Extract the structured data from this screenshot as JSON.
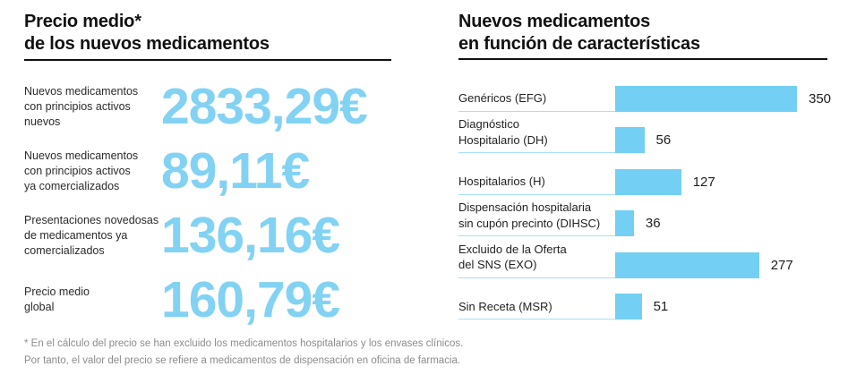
{
  "colors": {
    "accent_blue_numbers": "#82D2F3",
    "accent_blue_bars": "#73CFF3",
    "label_underline_blue": "#A8DFF7",
    "title_black": "#111111",
    "footnote_gray": "#8c8c8c",
    "background": "#ffffff"
  },
  "left": {
    "title": "Precio medio*\nde los nuevos medicamentos",
    "stats": [
      {
        "label": "Nuevos medicamentos\ncon principios activos\nnuevos",
        "value": "2833,29€"
      },
      {
        "label": "Nuevos medicamentos\ncon principios activos\nya comercializados",
        "value": "89,11€"
      },
      {
        "label": "Presentaciones novedosas\nde medicamentos ya\ncomercializados",
        "value": "136,16€"
      },
      {
        "label": "Precio medio\nglobal",
        "value": "160,79€"
      }
    ],
    "footnote": "* En el cálculo del precio se han excluido los medicamentos hospitalarios y los envases clínicos.\nPor tanto, el valor del precio se refiere a medicamentos de dispensación en oficina de farmacia."
  },
  "right": {
    "title": "Nuevos medicamentos\nen función de características",
    "bars": [
      {
        "label": "Genéricos (EFG)"
      },
      {
        "label": "Diagnóstico\nHospitalario (DH)"
      },
      {
        "label": "Hospitalarios (H)"
      },
      {
        "label": "Dispensación hospitalaria\nsin cupón precinto (DIHSC)"
      },
      {
        "label": "Excluido de la Oferta\ndel SNS (EXO)"
      },
      {
        "label": "Sin Receta (MSR)"
      }
    ]
  },
  "chart_data": [
    {
      "type": "table",
      "title": "Precio medio* de los nuevos medicamentos",
      "categories": [
        "Nuevos medicamentos con principios activos nuevos",
        "Nuevos medicamentos con principios activos ya comercializados",
        "Presentaciones novedosas de medicamentos ya comercializados",
        "Precio medio global"
      ],
      "values": [
        2833.29,
        89.11,
        136.16,
        160.79
      ],
      "unit": "€",
      "note": "* En el cálculo del precio se han excluido los medicamentos hospitalarios y los envases clínicos. Por tanto, el valor del precio se refiere a medicamentos de dispensación en oficina de farmacia."
    },
    {
      "type": "bar",
      "orientation": "horizontal",
      "title": "Nuevos medicamentos en función de características",
      "categories": [
        "Genéricos (EFG)",
        "Diagnóstico Hospitalario (DH)",
        "Hospitalarios (H)",
        "Dispensación hospitalaria sin cupón precinto (DIHSC)",
        "Excluido de la Oferta del SNS (EXO)",
        "Sin Receta (MSR)"
      ],
      "values": [
        350,
        56,
        127,
        36,
        277,
        51
      ],
      "xlim": [
        0,
        350
      ],
      "data_labels": true,
      "grid": false,
      "legend": false,
      "bar_color": "#73CFF3"
    }
  ]
}
